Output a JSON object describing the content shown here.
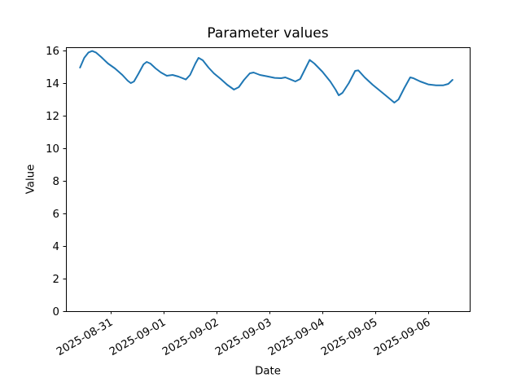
{
  "chart_data": {
    "type": "line",
    "title": "Parameter values",
    "xlabel": "Date",
    "ylabel": "Value",
    "x_tick_labels": [
      "2025-08-31",
      "2025-09-01",
      "2025-09-02",
      "2025-09-03",
      "2025-09-04",
      "2025-09-05",
      "2025-09-06"
    ],
    "x_tick_days": [
      0,
      1,
      2,
      3,
      4,
      5,
      6
    ],
    "x_unit": "days since 2025-08-31",
    "y_ticks": [
      0,
      2,
      4,
      6,
      8,
      10,
      12,
      14,
      16
    ],
    "xlim_days": [
      -0.846,
      6.785
    ],
    "ylim": [
      0,
      16.2
    ],
    "grid": false,
    "legend": "none",
    "line_color": "#1f77b4",
    "line_width": 2,
    "series": [
      {
        "x_days": [
          -0.58,
          -0.5,
          -0.42,
          -0.35,
          -0.28,
          -0.18,
          -0.05,
          0.08,
          0.22,
          0.32,
          0.38,
          0.44,
          0.52,
          0.62,
          0.68,
          0.75,
          0.85,
          0.95,
          1.06,
          1.17,
          1.28,
          1.42,
          1.5,
          1.6,
          1.66,
          1.74,
          1.85,
          1.95,
          2.08,
          2.2,
          2.33,
          2.42,
          2.52,
          2.63,
          2.7,
          2.82,
          2.95,
          3.1,
          3.22,
          3.3,
          3.4,
          3.49,
          3.58,
          3.68,
          3.76,
          3.85,
          4.0,
          4.15,
          4.25,
          4.31,
          4.38,
          4.5,
          4.62,
          4.68,
          4.8,
          4.95,
          5.1,
          5.25,
          5.36,
          5.44,
          5.55,
          5.66,
          5.72,
          5.85,
          6.0,
          6.15,
          6.28,
          6.38,
          6.46
        ],
        "values": [
          14.95,
          15.55,
          15.88,
          15.97,
          15.88,
          15.6,
          15.2,
          14.9,
          14.5,
          14.15,
          14.0,
          14.1,
          14.55,
          15.15,
          15.3,
          15.2,
          14.9,
          14.65,
          14.45,
          14.5,
          14.4,
          14.22,
          14.5,
          15.2,
          15.55,
          15.4,
          14.95,
          14.6,
          14.25,
          13.9,
          13.6,
          13.75,
          14.2,
          14.6,
          14.65,
          14.5,
          14.42,
          14.32,
          14.3,
          14.35,
          14.22,
          14.1,
          14.25,
          14.9,
          15.42,
          15.2,
          14.7,
          14.1,
          13.6,
          13.25,
          13.4,
          14.0,
          14.75,
          14.78,
          14.35,
          13.9,
          13.5,
          13.1,
          12.8,
          13.0,
          13.7,
          14.35,
          14.3,
          14.1,
          13.92,
          13.86,
          13.86,
          13.95,
          14.2
        ]
      }
    ]
  }
}
